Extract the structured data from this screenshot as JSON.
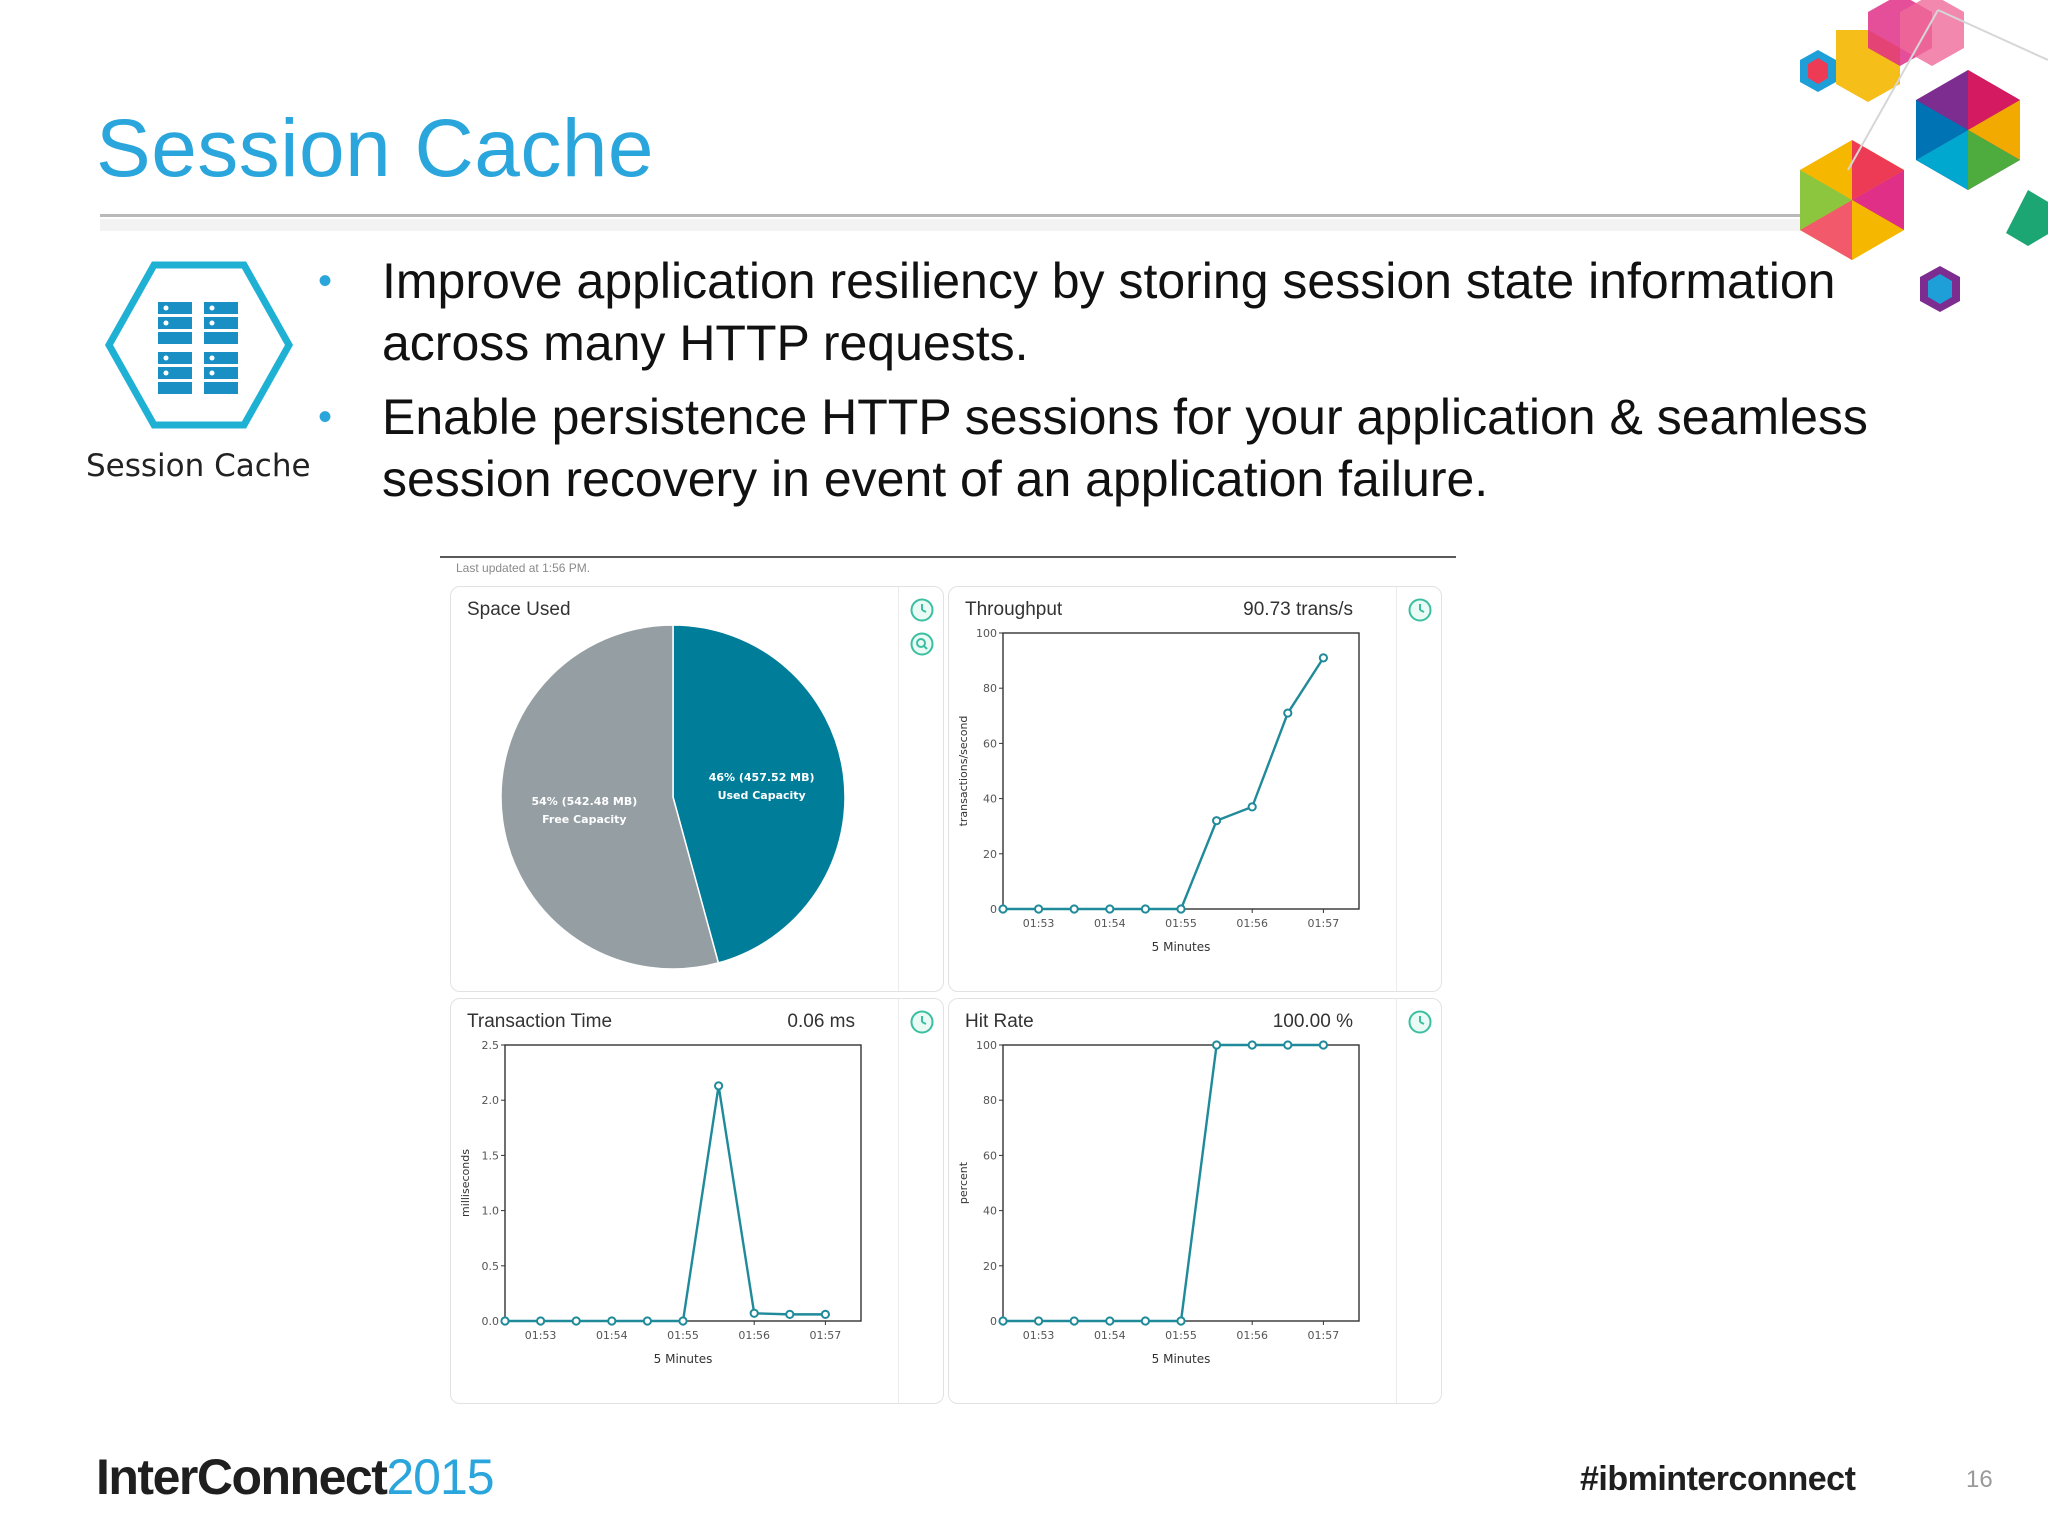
{
  "slide": {
    "title": "Session Cache",
    "service_caption": "Session Cache",
    "bullets": [
      "Improve application resiliency by storing session state information across many HTTP requests.",
      "Enable persistence HTTP sessions for your application & seamless session recovery in event of an application failure."
    ],
    "page_number": "16"
  },
  "footer": {
    "logo_main": "InterConnect",
    "logo_year": "2015",
    "hashtag": "#ibminterconnect"
  },
  "dashboard": {
    "last_updated": "Last updated at 1:56 PM.",
    "space_used": {
      "title": "Space Used"
    },
    "throughput": {
      "title": "Throughput",
      "value": "90.73 trans/s"
    },
    "transaction_time": {
      "title": "Transaction Time",
      "value": "0.06 ms"
    },
    "hit_rate": {
      "title": "Hit Rate",
      "value": "100.00 %"
    }
  },
  "colors": {
    "accent": "#2aa6dc",
    "series": "#1f8a99",
    "pie_used": "#007d99",
    "pie_free": "#949ea3",
    "card_icon": "#3bbfa0"
  },
  "icons": {
    "card_history": "clock-icon",
    "card_zoom": "magnify-icon",
    "service": "server-rack-icon"
  },
  "chart_data": [
    {
      "id": "space_used",
      "type": "pie",
      "slices": [
        {
          "label_line1": "46% (457.52 MB)",
          "label_line2": "Used Capacity",
          "value": 457.52,
          "percent": 46,
          "color": "#007d99"
        },
        {
          "label_line1": "54% (542.48 MB)",
          "label_line2": "Free Capacity",
          "value": 542.48,
          "percent": 54,
          "color": "#949ea3"
        }
      ]
    },
    {
      "id": "throughput",
      "type": "line",
      "xlabel": "5 Minutes",
      "ylabel": "transactions/second",
      "ylim": [
        0,
        100
      ],
      "yticks": [
        "0",
        "20",
        "40",
        "60",
        "80",
        "100"
      ],
      "xtick_labels": [
        "01:53",
        "01:54",
        "01:55",
        "01:56",
        "01:57"
      ],
      "xlim": [
        -1,
        9
      ],
      "xtick_positions": [
        0,
        2,
        4,
        6,
        8
      ],
      "x": [
        -1,
        0,
        1,
        2,
        3,
        4,
        5,
        6,
        7,
        8
      ],
      "values": [
        0,
        0,
        0,
        0,
        0,
        0,
        32,
        37,
        71,
        91
      ]
    },
    {
      "id": "transaction_time",
      "type": "line",
      "xlabel": "5 Minutes",
      "ylabel": "milliseconds",
      "ylim": [
        0,
        2.5
      ],
      "yticks": [
        "0.0",
        "0.5",
        "1.0",
        "1.5",
        "2.0",
        "2.5"
      ],
      "xtick_labels": [
        "01:53",
        "01:54",
        "01:55",
        "01:56",
        "01:57"
      ],
      "xlim": [
        -1,
        9
      ],
      "xtick_positions": [
        0,
        2,
        4,
        6,
        8
      ],
      "x": [
        -1,
        0,
        1,
        2,
        3,
        4,
        5,
        6,
        7,
        8
      ],
      "values": [
        0,
        0,
        0,
        0,
        0,
        0,
        2.13,
        0.07,
        0.06,
        0.06
      ]
    },
    {
      "id": "hit_rate",
      "type": "line",
      "xlabel": "5 Minutes",
      "ylabel": "percent",
      "ylim": [
        0,
        100
      ],
      "yticks": [
        "0",
        "20",
        "40",
        "60",
        "80",
        "100"
      ],
      "xtick_labels": [
        "01:53",
        "01:54",
        "01:55",
        "01:56",
        "01:57"
      ],
      "xlim": [
        -1,
        9
      ],
      "xtick_positions": [
        0,
        2,
        4,
        6,
        8
      ],
      "x": [
        -1,
        0,
        1,
        2,
        3,
        4,
        5,
        6,
        7,
        8
      ],
      "values": [
        0,
        0,
        0,
        0,
        0,
        0,
        100,
        100,
        100,
        100
      ]
    }
  ]
}
